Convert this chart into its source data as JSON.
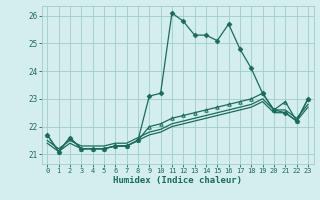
{
  "xlabel": "Humidex (Indice chaleur)",
  "bg_color": "#d4eeee",
  "grid_color": "#a0cccc",
  "line_color": "#1a6b5a",
  "xlim": [
    -0.5,
    23.5
  ],
  "ylim": [
    20.65,
    26.35
  ],
  "yticks": [
    21,
    22,
    23,
    24,
    25,
    26
  ],
  "xticks": [
    0,
    1,
    2,
    3,
    4,
    5,
    6,
    7,
    8,
    9,
    10,
    11,
    12,
    13,
    14,
    15,
    16,
    17,
    18,
    19,
    20,
    21,
    22,
    23
  ],
  "series1_x": [
    0,
    1,
    2,
    3,
    4,
    5,
    6,
    7,
    8,
    9,
    10,
    11,
    12,
    13,
    14,
    15,
    16,
    17,
    18,
    19,
    20,
    21,
    22,
    23
  ],
  "series1_y": [
    21.7,
    21.1,
    21.6,
    21.2,
    21.2,
    21.2,
    21.3,
    21.3,
    21.5,
    23.1,
    23.2,
    26.1,
    25.8,
    25.3,
    25.3,
    25.1,
    25.7,
    24.8,
    24.1,
    23.2,
    22.6,
    22.5,
    22.2,
    23.0
  ],
  "series2_x": [
    0,
    1,
    2,
    3,
    4,
    5,
    6,
    7,
    8,
    9,
    10,
    11,
    12,
    13,
    14,
    15,
    16,
    17,
    18,
    19,
    20,
    21,
    22,
    23
  ],
  "series2_y": [
    21.5,
    21.2,
    21.5,
    21.3,
    21.3,
    21.3,
    21.4,
    21.4,
    21.6,
    21.8,
    21.9,
    22.1,
    22.2,
    22.3,
    22.4,
    22.5,
    22.6,
    22.7,
    22.8,
    23.0,
    22.6,
    22.6,
    22.3,
    22.8
  ],
  "series3_x": [
    0,
    1,
    2,
    3,
    4,
    5,
    6,
    7,
    8,
    9,
    10,
    11,
    12,
    13,
    14,
    15,
    16,
    17,
    18,
    19,
    20,
    21,
    22,
    23
  ],
  "series3_y": [
    21.4,
    21.1,
    21.4,
    21.2,
    21.2,
    21.2,
    21.3,
    21.3,
    21.5,
    21.7,
    21.8,
    22.0,
    22.1,
    22.2,
    22.3,
    22.4,
    22.5,
    22.6,
    22.7,
    22.9,
    22.5,
    22.5,
    22.2,
    22.7
  ],
  "series4_x": [
    0,
    1,
    2,
    3,
    4,
    5,
    6,
    7,
    8,
    9,
    10,
    11,
    12,
    13,
    14,
    15,
    16,
    17,
    18,
    19,
    20,
    21,
    22,
    23
  ],
  "series4_y": [
    21.7,
    21.1,
    21.6,
    21.2,
    21.2,
    21.2,
    21.3,
    21.3,
    21.5,
    22.0,
    22.1,
    22.3,
    22.4,
    22.5,
    22.6,
    22.7,
    22.8,
    22.9,
    23.0,
    23.2,
    22.6,
    22.9,
    22.2,
    23.0
  ]
}
